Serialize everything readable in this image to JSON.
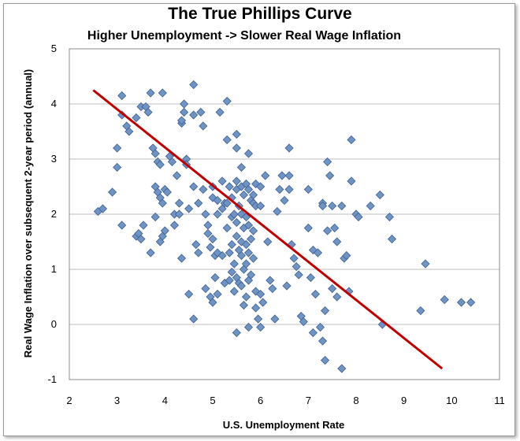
{
  "chart_data": {
    "type": "scatter",
    "title": "The True Phillips Curve",
    "subtitle": "Higher Unemployment -> Slower Real Wage Inflation",
    "xlabel": "U.S. Unemployment Rate",
    "ylabel": "Real Wage Inflation over subsequent 2-year period (annual)",
    "xlim": [
      2,
      11
    ],
    "ylim": [
      -1,
      5
    ],
    "xticks": [
      2,
      3,
      4,
      5,
      6,
      7,
      8,
      9,
      10,
      11
    ],
    "yticks": [
      -1,
      0,
      1,
      2,
      3,
      4,
      5
    ],
    "grid": "horizontal",
    "marker_color": "#6f93c4",
    "trendline_color": "#c00000",
    "trendline": {
      "x": [
        2.5,
        9.8
      ],
      "y": [
        4.25,
        -0.8
      ]
    },
    "points": [
      [
        2.6,
        2.05
      ],
      [
        2.7,
        2.1
      ],
      [
        2.9,
        2.4
      ],
      [
        3.0,
        2.85
      ],
      [
        3.1,
        4.15
      ],
      [
        3.0,
        3.2
      ],
      [
        3.1,
        3.8
      ],
      [
        3.2,
        3.6
      ],
      [
        3.25,
        3.5
      ],
      [
        3.1,
        1.8
      ],
      [
        3.4,
        3.75
      ],
      [
        3.5,
        3.95
      ],
      [
        3.6,
        3.95
      ],
      [
        3.65,
        3.85
      ],
      [
        3.7,
        4.2
      ],
      [
        3.4,
        1.6
      ],
      [
        3.45,
        1.65
      ],
      [
        3.5,
        1.55
      ],
      [
        3.55,
        1.8
      ],
      [
        3.7,
        1.3
      ],
      [
        3.75,
        3.2
      ],
      [
        3.8,
        3.1
      ],
      [
        3.85,
        2.95
      ],
      [
        3.9,
        2.9
      ],
      [
        3.95,
        4.2
      ],
      [
        3.8,
        2.5
      ],
      [
        3.85,
        2.4
      ],
      [
        3.9,
        2.3
      ],
      [
        3.95,
        2.2
      ],
      [
        3.8,
        1.95
      ],
      [
        3.9,
        1.5
      ],
      [
        3.95,
        1.6
      ],
      [
        4.0,
        1.7
      ],
      [
        4.0,
        2.45
      ],
      [
        4.05,
        2.4
      ],
      [
        4.1,
        3.05
      ],
      [
        4.15,
        2.95
      ],
      [
        4.2,
        2.0
      ],
      [
        4.2,
        1.8
      ],
      [
        4.25,
        2.7
      ],
      [
        4.3,
        2.2
      ],
      [
        4.3,
        2.0
      ],
      [
        4.35,
        1.2
      ],
      [
        4.35,
        3.65
      ],
      [
        4.35,
        3.7
      ],
      [
        4.4,
        3.85
      ],
      [
        4.4,
        4.0
      ],
      [
        4.45,
        3.0
      ],
      [
        4.45,
        2.9
      ],
      [
        4.5,
        2.1
      ],
      [
        4.5,
        0.55
      ],
      [
        4.6,
        4.35
      ],
      [
        4.6,
        3.8
      ],
      [
        4.6,
        2.5
      ],
      [
        4.65,
        1.45
      ],
      [
        4.6,
        0.1
      ],
      [
        4.7,
        2.2
      ],
      [
        4.7,
        1.3
      ],
      [
        4.75,
        3.85
      ],
      [
        4.8,
        3.6
      ],
      [
        4.8,
        2.45
      ],
      [
        4.85,
        2.0
      ],
      [
        4.85,
        0.65
      ],
      [
        4.9,
        1.8
      ],
      [
        4.9,
        1.65
      ],
      [
        4.95,
        1.4
      ],
      [
        4.95,
        0.5
      ],
      [
        5.0,
        2.5
      ],
      [
        5.0,
        2.3
      ],
      [
        5.0,
        1.55
      ],
      [
        5.0,
        0.4
      ],
      [
        5.05,
        1.25
      ],
      [
        5.05,
        0.85
      ],
      [
        5.1,
        2.25
      ],
      [
        5.1,
        2.0
      ],
      [
        5.1,
        1.3
      ],
      [
        5.1,
        0.55
      ],
      [
        5.15,
        3.85
      ],
      [
        5.2,
        2.6
      ],
      [
        5.2,
        2.1
      ],
      [
        5.2,
        1.25
      ],
      [
        5.25,
        2.2
      ],
      [
        5.25,
        0.75
      ],
      [
        5.3,
        4.05
      ],
      [
        5.3,
        3.35
      ],
      [
        5.3,
        2.2
      ],
      [
        5.3,
        1.75
      ],
      [
        5.35,
        2.5
      ],
      [
        5.35,
        1.3
      ],
      [
        5.35,
        0.8
      ],
      [
        5.4,
        2.3
      ],
      [
        5.4,
        1.95
      ],
      [
        5.4,
        1.45
      ],
      [
        5.4,
        0.95
      ],
      [
        5.45,
        2.0
      ],
      [
        5.45,
        1.1
      ],
      [
        5.45,
        0.6
      ],
      [
        5.5,
        3.45
      ],
      [
        5.5,
        3.2
      ],
      [
        5.5,
        2.6
      ],
      [
        5.5,
        2.45
      ],
      [
        5.5,
        1.85
      ],
      [
        5.5,
        1.6
      ],
      [
        5.5,
        0.85
      ],
      [
        5.5,
        -0.15
      ],
      [
        5.55,
        2.15
      ],
      [
        5.55,
        1.35
      ],
      [
        5.55,
        0.75
      ],
      [
        5.6,
        2.85
      ],
      [
        5.6,
        2.5
      ],
      [
        5.6,
        2.0
      ],
      [
        5.6,
        1.5
      ],
      [
        5.6,
        1.25
      ],
      [
        5.6,
        0.7
      ],
      [
        5.65,
        2.35
      ],
      [
        5.65,
        1.75
      ],
      [
        5.65,
        1.0
      ],
      [
        5.65,
        0.35
      ],
      [
        5.7,
        2.55
      ],
      [
        5.7,
        1.95
      ],
      [
        5.7,
        1.45
      ],
      [
        5.7,
        1.1
      ],
      [
        5.7,
        0.5
      ],
      [
        5.75,
        3.1
      ],
      [
        5.75,
        2.45
      ],
      [
        5.75,
        1.8
      ],
      [
        5.75,
        1.3
      ],
      [
        5.75,
        0.8
      ],
      [
        5.75,
        -0.05
      ],
      [
        5.8,
        2.25
      ],
      [
        5.8,
        1.55
      ],
      [
        5.8,
        0.9
      ],
      [
        5.85,
        2.35
      ],
      [
        5.85,
        2.2
      ],
      [
        5.85,
        1.7
      ],
      [
        5.85,
        1.2
      ],
      [
        5.9,
        2.55
      ],
      [
        5.9,
        2.15
      ],
      [
        5.9,
        0.6
      ],
      [
        5.9,
        0.3
      ],
      [
        5.95,
        0.1
      ],
      [
        6.0,
        2.5
      ],
      [
        6.0,
        2.15
      ],
      [
        6.0,
        0.55
      ],
      [
        6.0,
        -0.05
      ],
      [
        6.05,
        0.4
      ],
      [
        6.1,
        2.7
      ],
      [
        6.15,
        1.5
      ],
      [
        6.2,
        0.8
      ],
      [
        6.25,
        0.65
      ],
      [
        6.3,
        0.1
      ],
      [
        6.35,
        2.05
      ],
      [
        6.4,
        2.45
      ],
      [
        6.45,
        2.7
      ],
      [
        6.5,
        2.25
      ],
      [
        6.55,
        0.7
      ],
      [
        6.6,
        3.2
      ],
      [
        6.6,
        2.7
      ],
      [
        6.6,
        2.45
      ],
      [
        6.65,
        1.45
      ],
      [
        6.7,
        1.2
      ],
      [
        6.75,
        1.05
      ],
      [
        6.8,
        0.9
      ],
      [
        6.85,
        0.15
      ],
      [
        6.9,
        0.05
      ],
      [
        7.0,
        2.45
      ],
      [
        7.0,
        1.75
      ],
      [
        7.05,
        0.85
      ],
      [
        7.1,
        1.35
      ],
      [
        7.1,
        -0.15
      ],
      [
        7.15,
        0.55
      ],
      [
        7.2,
        1.3
      ],
      [
        7.3,
        2.2
      ],
      [
        7.3,
        2.15
      ],
      [
        7.35,
        0.25
      ],
      [
        7.4,
        2.95
      ],
      [
        7.4,
        1.7
      ],
      [
        7.45,
        2.7
      ],
      [
        7.5,
        2.15
      ],
      [
        7.5,
        0.65
      ],
      [
        7.55,
        1.75
      ],
      [
        7.6,
        1.5
      ],
      [
        7.6,
        0.5
      ],
      [
        7.7,
        2.15
      ],
      [
        7.75,
        1.2
      ],
      [
        7.8,
        1.25
      ],
      [
        7.85,
        0.6
      ],
      [
        7.9,
        3.35
      ],
      [
        7.9,
        2.6
      ],
      [
        8.0,
        2.0
      ],
      [
        8.05,
        1.95
      ],
      [
        8.3,
        2.15
      ],
      [
        8.5,
        2.35
      ],
      [
        8.7,
        1.95
      ],
      [
        8.75,
        1.55
      ],
      [
        9.35,
        0.25
      ],
      [
        9.45,
        1.1
      ],
      [
        9.85,
        0.45
      ],
      [
        10.2,
        0.4
      ],
      [
        10.4,
        0.4
      ],
      [
        7.25,
        -0.05
      ],
      [
        7.3,
        -0.3
      ],
      [
        7.35,
        -0.65
      ],
      [
        7.7,
        -0.8
      ],
      [
        8.55,
        0.0
      ]
    ]
  }
}
